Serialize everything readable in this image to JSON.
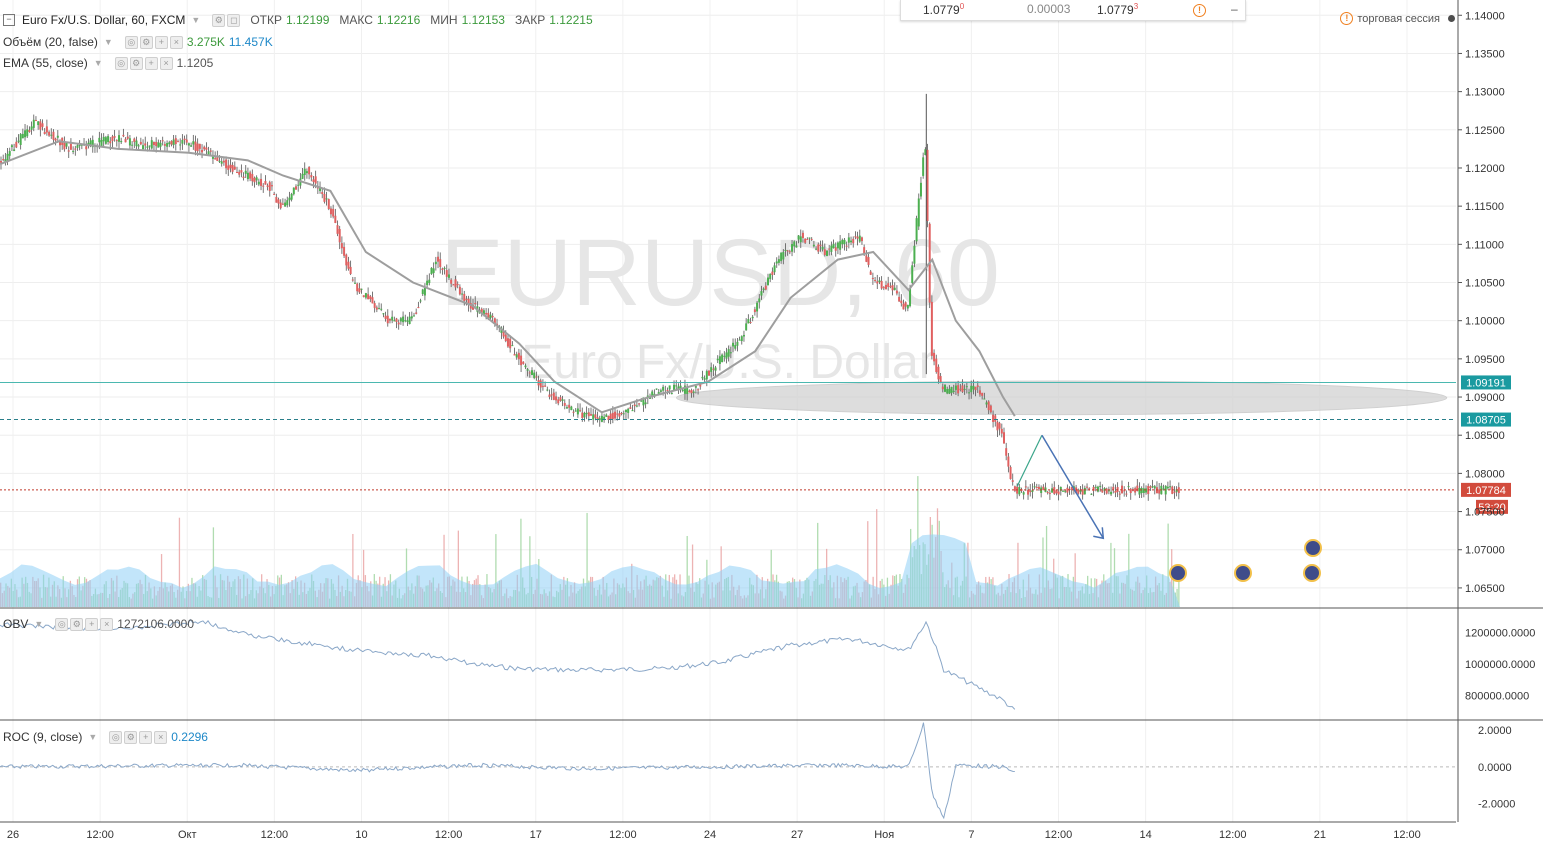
{
  "header": {
    "symbol_title": "Euro Fx/U.S. Dollar, 60, FXCM",
    "open_label": "ОТКР",
    "open_value": "1.12199",
    "high_label": "МАКС",
    "high_value": "1.12216",
    "low_label": "МИН",
    "low_value": "1.12153",
    "close_label": "ЗАКР",
    "close_value": "1.12215",
    "session_label": "торговая сессия"
  },
  "indicators": {
    "volume": {
      "title": "Объём (20, false)",
      "value1": "3.275K",
      "value2": "11.457K"
    },
    "ema": {
      "title": "EMA (55, close)",
      "value": "1.1205"
    },
    "obv": {
      "title": "OBV",
      "value": "1272106.0000"
    },
    "roc": {
      "title": "ROC (9, close)",
      "value": "0.2296"
    }
  },
  "quote_widget": {
    "bid": "1.0779",
    "bid_sup": "0",
    "spread": "0.00003",
    "ask": "1.0779",
    "ask_sup": "3",
    "minus": "–"
  },
  "watermark": {
    "symbol": "EURUSD, 60",
    "name": "Euro Fx/U.S. Dollar"
  },
  "colors": {
    "up": "#4caf50",
    "down": "#e06060",
    "ema": "#9e9e9e",
    "volume_area": "#8fd0f5",
    "obv_line": "#8aa7c8",
    "level_teal": "#4bb8b0",
    "level_dashed": "#2a7f8a",
    "level_red": "#c0392b",
    "arrow": "#4a73b5",
    "zone": "#d0d0d0"
  },
  "chart_data": {
    "type": "candlestick",
    "ylim": [
      1.0625,
      1.142
    ],
    "y_ticks": [
      "1.14000",
      "1.13500",
      "1.13000",
      "1.12500",
      "1.12000",
      "1.11500",
      "1.11000",
      "1.10500",
      "1.10000",
      "1.09500",
      "1.09000",
      "1.08500",
      "1.08000",
      "1.07500",
      "1.07000",
      "1.06500"
    ],
    "x_tick_labels": [
      "26",
      "12:00",
      "Окт",
      "12:00",
      "10",
      "12:00",
      "17",
      "12:00",
      "24",
      "27",
      "Ноя",
      "7",
      "12:00",
      "14",
      "12:00",
      "21",
      "12:00"
    ],
    "price_path": [
      [
        0,
        1.1205
      ],
      [
        0.03,
        1.126
      ],
      [
        0.06,
        1.1225
      ],
      [
        0.1,
        1.124
      ],
      [
        0.12,
        1.123
      ],
      [
        0.16,
        1.1235
      ],
      [
        0.18,
        1.1215
      ],
      [
        0.21,
        1.119
      ],
      [
        0.23,
        1.1175
      ],
      [
        0.24,
        1.1145
      ],
      [
        0.26,
        1.12
      ],
      [
        0.28,
        1.115
      ],
      [
        0.3,
        1.105
      ],
      [
        0.33,
        1.1
      ],
      [
        0.35,
        1.1
      ],
      [
        0.37,
        1.108
      ],
      [
        0.4,
        1.102
      ],
      [
        0.42,
        1.1
      ],
      [
        0.44,
        1.095
      ],
      [
        0.47,
        1.09
      ],
      [
        0.49,
        1.088
      ],
      [
        0.51,
        1.087
      ],
      [
        0.53,
        1.088
      ],
      [
        0.56,
        1.091
      ],
      [
        0.59,
        1.091
      ],
      [
        0.6,
        1.093
      ],
      [
        0.63,
        1.098
      ],
      [
        0.66,
        1.108
      ],
      [
        0.68,
        1.111
      ],
      [
        0.7,
        1.109
      ],
      [
        0.73,
        1.111
      ],
      [
        0.74,
        1.105
      ],
      [
        0.76,
        1.104
      ],
      [
        0.77,
        1.101
      ],
      [
        0.785,
        1.124
      ],
      [
        0.79,
        1.096
      ],
      [
        0.8,
        1.091
      ],
      [
        0.83,
        1.091
      ],
      [
        0.85,
        1.085
      ],
      [
        0.86,
        1.0778
      ]
    ],
    "ema_path": [
      [
        0,
        1.1205
      ],
      [
        0.05,
        1.1235
      ],
      [
        0.1,
        1.1225
      ],
      [
        0.16,
        1.122
      ],
      [
        0.21,
        1.121
      ],
      [
        0.24,
        1.119
      ],
      [
        0.28,
        1.117
      ],
      [
        0.31,
        1.109
      ],
      [
        0.35,
        1.105
      ],
      [
        0.4,
        1.102
      ],
      [
        0.44,
        1.097
      ],
      [
        0.47,
        1.092
      ],
      [
        0.51,
        1.088
      ],
      [
        0.55,
        1.09
      ],
      [
        0.6,
        1.092
      ],
      [
        0.64,
        1.096
      ],
      [
        0.67,
        1.103
      ],
      [
        0.71,
        1.108
      ],
      [
        0.74,
        1.109
      ],
      [
        0.77,
        1.104
      ],
      [
        0.79,
        1.108
      ],
      [
        0.81,
        1.1
      ],
      [
        0.83,
        1.096
      ],
      [
        0.85,
        1.09
      ],
      [
        0.86,
        1.0875
      ]
    ],
    "levels": [
      {
        "price": 1.09191,
        "label": "1.09191",
        "style": "teal"
      },
      {
        "price": 1.08705,
        "label": "1.08705",
        "style": "dashed"
      },
      {
        "price": 1.07784,
        "label": "1.07784",
        "style": "red"
      }
    ],
    "countdown": "53:20",
    "projection": [
      [
        0.862,
        1.0783
      ],
      [
        0.883,
        1.085
      ],
      [
        0.935,
        1.0715
      ]
    ],
    "zone": {
      "x_center": 0.688,
      "price_center": 1.0899,
      "width_frac": 0.52,
      "price_half_height": 0.0022
    },
    "obv": {
      "ylim": [
        650000,
        1350000
      ],
      "ticks": [
        "1200000.0000",
        "1000000.0000",
        "800000.0000"
      ],
      "path": [
        [
          0,
          1250000
        ],
        [
          0.1,
          1220000
        ],
        [
          0.17,
          1275000
        ],
        [
          0.22,
          1170000
        ],
        [
          0.3,
          1090000
        ],
        [
          0.37,
          1050000
        ],
        [
          0.4,
          1000000
        ],
        [
          0.44,
          970000
        ],
        [
          0.49,
          960000
        ],
        [
          0.56,
          970000
        ],
        [
          0.61,
          1010000
        ],
        [
          0.67,
          1120000
        ],
        [
          0.72,
          1160000
        ],
        [
          0.77,
          1090000
        ],
        [
          0.785,
          1270000
        ],
        [
          0.8,
          960000
        ],
        [
          0.85,
          770000
        ],
        [
          0.86,
          700000
        ]
      ]
    },
    "roc": {
      "ylim": [
        -3.0,
        2.5
      ],
      "ticks": [
        "2.0000",
        "0.0000",
        "-2.0000"
      ],
      "path": [
        [
          0,
          0.0
        ],
        [
          0.2,
          0.1
        ],
        [
          0.3,
          -0.2
        ],
        [
          0.4,
          0.1
        ],
        [
          0.5,
          -0.1
        ],
        [
          0.6,
          0.0
        ],
        [
          0.7,
          0.1
        ],
        [
          0.77,
          0.0
        ],
        [
          0.783,
          2.4
        ],
        [
          0.79,
          -1.5
        ],
        [
          0.8,
          -2.8
        ],
        [
          0.81,
          0.1
        ],
        [
          0.85,
          0.0
        ],
        [
          0.86,
          -0.3
        ]
      ]
    },
    "volume": {
      "max": 1.0
    }
  }
}
